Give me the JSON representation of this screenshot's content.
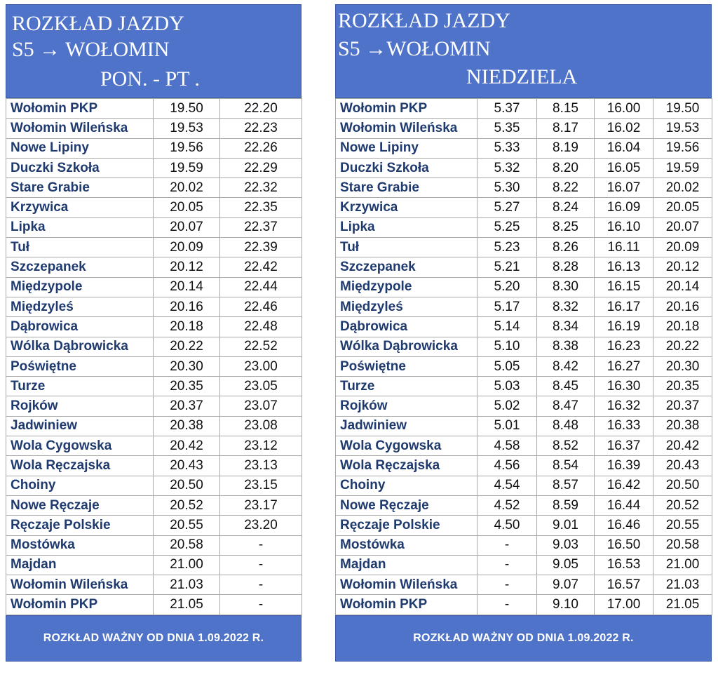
{
  "left": {
    "title": "ROZKŁAD JAZDY",
    "route": "S5 → WOŁOMIN",
    "days": "PON. - PT .",
    "rows": [
      [
        "Wołomin PKP",
        "19.50",
        "22.20"
      ],
      [
        "Wołomin Wileńska",
        "19.53",
        "22.23"
      ],
      [
        "Nowe Lipiny",
        "19.56",
        "22.26"
      ],
      [
        "Duczki Szkoła",
        "19.59",
        "22.29"
      ],
      [
        "Stare Grabie",
        "20.02",
        "22.32"
      ],
      [
        "Krzywica",
        "20.05",
        "22.35"
      ],
      [
        "Lipka",
        "20.07",
        "22.37"
      ],
      [
        "Tuł",
        "20.09",
        "22.39"
      ],
      [
        "Szczepanek",
        "20.12",
        "22.42"
      ],
      [
        "Międzypole",
        "20.14",
        "22.44"
      ],
      [
        "Międzyleś",
        "20.16",
        "22.46"
      ],
      [
        "Dąbrowica",
        "20.18",
        "22.48"
      ],
      [
        "Wólka Dąbrowicka",
        "20.22",
        "22.52"
      ],
      [
        "Poświętne",
        "20.30",
        "23.00"
      ],
      [
        "Turze",
        "20.35",
        "23.05"
      ],
      [
        "Rojków",
        "20.37",
        "23.07"
      ],
      [
        "Jadwiniew",
        "20.38",
        "23.08"
      ],
      [
        "Wola Cygowska",
        "20.42",
        "23.12"
      ],
      [
        "Wola Ręczajska",
        "20.43",
        "23.13"
      ],
      [
        "Choiny",
        "20.50",
        "23.15"
      ],
      [
        "Nowe Ręczaje",
        "20.52",
        "23.17"
      ],
      [
        "Ręczaje Polskie",
        "20.55",
        "23.20"
      ],
      [
        "Mostówka",
        "20.58",
        "-"
      ],
      [
        "Majdan",
        "21.00",
        "-"
      ],
      [
        "Wołomin Wileńska",
        "21.03",
        "-"
      ],
      [
        "Wołomin PKP",
        "21.05",
        "-"
      ]
    ],
    "footer": "ROZKŁAD WAŻNY OD DNIA 1.09.2022 R."
  },
  "right": {
    "title": "ROZKŁAD JAZDY",
    "route": "S5   →WOŁOMIN",
    "days": "NIEDZIELA",
    "rows": [
      [
        "Wołomin PKP",
        "5.37",
        "8.15",
        "16.00",
        "19.50"
      ],
      [
        "Wołomin Wileńska",
        "5.35",
        "8.17",
        "16.02",
        "19.53"
      ],
      [
        "Nowe Lipiny",
        "5.33",
        "8.19",
        "16.04",
        "19.56"
      ],
      [
        "Duczki Szkoła",
        "5.32",
        "8.20",
        "16.05",
        "19.59"
      ],
      [
        "Stare Grabie",
        "5.30",
        "8.22",
        "16.07",
        "20.02"
      ],
      [
        "Krzywica",
        "5.27",
        "8.24",
        "16.09",
        "20.05"
      ],
      [
        "Lipka",
        "5.25",
        "8.25",
        "16.10",
        "20.07"
      ],
      [
        "Tuł",
        "5.23",
        "8.26",
        "16.11",
        "20.09"
      ],
      [
        "Szczepanek",
        "5.21",
        "8.28",
        "16.13",
        "20.12"
      ],
      [
        "Międzypole",
        "5.20",
        "8.30",
        "16.15",
        "20.14"
      ],
      [
        "Międzyleś",
        "5.17",
        "8.32",
        "16.17",
        "20.16"
      ],
      [
        "Dąbrowica",
        "5.14",
        "8.34",
        "16.19",
        "20.18"
      ],
      [
        "Wólka Dąbrowicka",
        "5.10",
        "8.38",
        "16.23",
        "20.22"
      ],
      [
        "Poświętne",
        "5.05",
        "8.42",
        "16.27",
        "20.30"
      ],
      [
        "Turze",
        "5.03",
        "8.45",
        "16.30",
        "20.35"
      ],
      [
        "Rojków",
        "5.02",
        "8.47",
        "16.32",
        "20.37"
      ],
      [
        "Jadwiniew",
        "5.01",
        "8.48",
        "16.33",
        "20.38"
      ],
      [
        "Wola Cygowska",
        "4.58",
        "8.52",
        "16.37",
        "20.42"
      ],
      [
        "Wola Ręczajska",
        "4.56",
        "8.54",
        "16.39",
        "20.43"
      ],
      [
        "Choiny",
        "4.54",
        "8.57",
        "16.42",
        "20.50"
      ],
      [
        "Nowe Ręczaje",
        "4.52",
        "8.59",
        "16.44",
        "20.52"
      ],
      [
        "Ręczaje Polskie",
        "4.50",
        "9.01",
        "16.46",
        "20.55"
      ],
      [
        "Mostówka",
        "-",
        "9.03",
        "16.50",
        "20.58"
      ],
      [
        "Majdan",
        "-",
        "9.05",
        "16.53",
        "21.00"
      ],
      [
        "Wołomin Wileńska",
        "-",
        "9.07",
        "16.57",
        "21.03"
      ],
      [
        "Wołomin PKP",
        "-",
        "9.10",
        "17.00",
        "21.05"
      ]
    ],
    "footer": "ROZKŁAD WAŻNY OD DNIA 1.09.2022 R."
  }
}
